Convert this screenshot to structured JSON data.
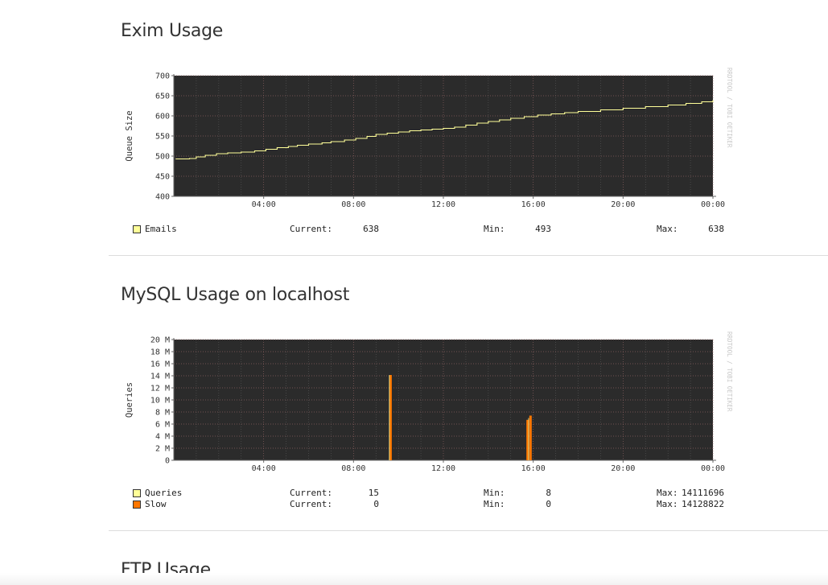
{
  "sections": {
    "exim": {
      "title": "Exim Usage",
      "chart_data": {
        "type": "line",
        "ylabel": "Queue Size",
        "ylim": [
          400,
          700
        ],
        "yticks": [
          400,
          450,
          500,
          550,
          600,
          650,
          700
        ],
        "ytick_labels": [
          "400",
          "450",
          "500",
          "550",
          "600",
          "650",
          "700"
        ],
        "xlim": [
          0,
          24
        ],
        "xticks": [
          4,
          8,
          12,
          16,
          20,
          24
        ],
        "xtick_labels": [
          "04:00",
          "08:00",
          "12:00",
          "16:00",
          "20:00",
          "00:00"
        ],
        "watermark": "RRDTOOL / TOBI OETIKER",
        "grid": true,
        "series": [
          {
            "name": "Emails",
            "color": "#ffff99",
            "x": [
              0.1,
              0.7,
              1.0,
              1.4,
              1.9,
              2.4,
              3.0,
              3.6,
              4.1,
              4.6,
              5.1,
              5.5,
              6.0,
              6.6,
              7.0,
              7.6,
              8.1,
              8.6,
              9.0,
              9.5,
              10.0,
              10.5,
              11.0,
              11.5,
              12.0,
              12.5,
              13.0,
              13.5,
              14.0,
              14.5,
              15.0,
              15.6,
              16.2,
              16.8,
              17.4,
              18.0,
              19.0,
              20.0,
              21.0,
              22.0,
              22.8,
              23.5,
              24.0
            ],
            "y": [
              493,
              494,
              498,
              502,
              506,
              508,
              510,
              513,
              517,
              521,
              524,
              527,
              530,
              533,
              536,
              540,
              544,
              549,
              554,
              557,
              560,
              563,
              565,
              567,
              569,
              572,
              577,
              582,
              586,
              590,
              594,
              598,
              602,
              605,
              608,
              611,
              615,
              619,
              623,
              627,
              631,
              635,
              638
            ]
          }
        ]
      },
      "legend": [
        {
          "label": "Emails",
          "color": "#ffff99",
          "current_label": "Current:",
          "current": "638",
          "min_label": "Min:",
          "min": "493",
          "max_label": "Max:",
          "max": "638"
        }
      ]
    },
    "mysql": {
      "title": "MySQL Usage on localhost",
      "chart_data": {
        "type": "bar",
        "ylabel": "Queries",
        "ylim": [
          0,
          20000000
        ],
        "yticks": [
          0,
          2000000,
          4000000,
          6000000,
          8000000,
          10000000,
          12000000,
          14000000,
          16000000,
          18000000,
          20000000
        ],
        "ytick_labels": [
          "0",
          "2 M",
          "4 M",
          "6 M",
          "8 M",
          "10 M",
          "12 M",
          "14 M",
          "16 M",
          "18 M",
          "20 M"
        ],
        "xlim": [
          0,
          24
        ],
        "xticks": [
          4,
          8,
          12,
          16,
          20,
          24
        ],
        "xtick_labels": [
          "04:00",
          "08:00",
          "12:00",
          "16:00",
          "20:00",
          "00:00"
        ],
        "watermark": "RRDTOOL / TOBI OETIKER",
        "grid": true,
        "series": [
          {
            "name": "Queries",
            "color": "#ffff99",
            "spikes": [
              {
                "x": 9.65,
                "value": 14111696
              },
              {
                "x": 15.85,
                "value": 7000000
              }
            ]
          },
          {
            "name": "Slow",
            "color": "#ff7700",
            "spikes": [
              {
                "x": 9.65,
                "value": 14128822
              },
              {
                "x": 15.75,
                "value": 6700000
              },
              {
                "x": 15.88,
                "value": 7400000
              }
            ]
          }
        ]
      },
      "legend": [
        {
          "label": "Queries",
          "color": "#ffff99",
          "current_label": "Current:",
          "current": "15",
          "min_label": "Min:",
          "min": "8",
          "max_label": "Max:",
          "max": "14111696"
        },
        {
          "label": "Slow",
          "color": "#ff7700",
          "current_label": "Current:",
          "current": "0",
          "min_label": "Min:",
          "min": "0",
          "max_label": "Max:",
          "max": "14128822"
        }
      ]
    },
    "ftp": {
      "title": "FTP Usage"
    }
  }
}
